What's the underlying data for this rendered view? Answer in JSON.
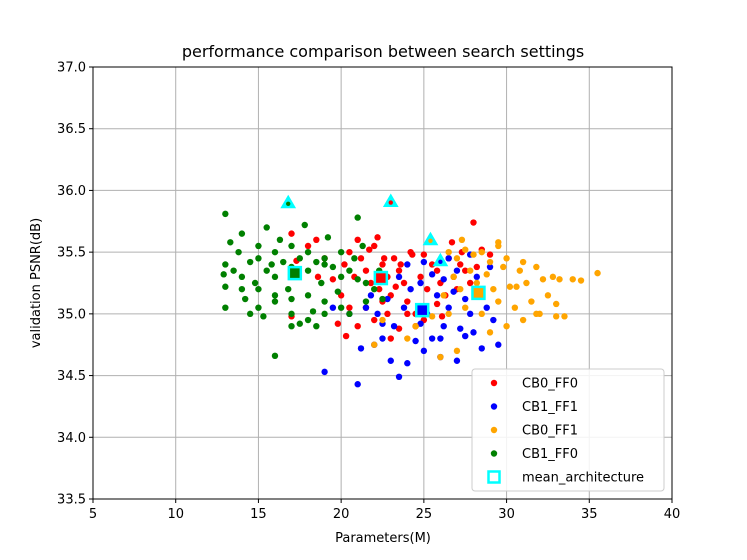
{
  "chart_data": {
    "type": "scatter",
    "title": "performance comparison between search settings",
    "xlabel": "Parameters(M)",
    "ylabel": "validation PSNR(dB)",
    "xlim": [
      5,
      40
    ],
    "ylim": [
      33.5,
      37.0
    ],
    "xticks": [
      "5",
      "10",
      "15",
      "20",
      "25",
      "30",
      "35",
      "40"
    ],
    "yticks": [
      "33.5",
      "34.0",
      "34.5",
      "35.0",
      "35.5",
      "36.0",
      "36.5",
      "37.0"
    ],
    "grid": true,
    "legend_position": "lower-right",
    "colors": {
      "CB0_FF0": "#ff0000",
      "CB1_FF1": "#0000ff",
      "CB0_FF1": "#ffa500",
      "CB1_FF0": "#008000",
      "mean": "#00ffff"
    },
    "series": [
      {
        "name": "CB0_FF0",
        "points": [
          [
            17.3,
            35.43
          ],
          [
            18.5,
            35.6
          ],
          [
            17.0,
            35.65
          ],
          [
            18.0,
            35.55
          ],
          [
            19.0,
            35.45
          ],
          [
            19.5,
            35.28
          ],
          [
            20.0,
            35.15
          ],
          [
            20.2,
            35.4
          ],
          [
            20.5,
            35.5
          ],
          [
            20.8,
            35.3
          ],
          [
            21.0,
            35.6
          ],
          [
            21.2,
            35.45
          ],
          [
            21.5,
            35.35
          ],
          [
            21.8,
            35.25
          ],
          [
            22.0,
            35.55
          ],
          [
            22.3,
            35.2
          ],
          [
            22.5,
            35.4
          ],
          [
            22.8,
            35.3
          ],
          [
            23.0,
            35.15
          ],
          [
            23.2,
            35.45
          ],
          [
            23.5,
            35.35
          ],
          [
            23.8,
            35.25
          ],
          [
            24.0,
            35.1
          ],
          [
            24.2,
            35.5
          ],
          [
            24.5,
            35.0
          ],
          [
            24.8,
            35.3
          ],
          [
            25.0,
            34.95
          ],
          [
            25.2,
            35.2
          ],
          [
            25.5,
            35.4
          ],
          [
            25.8,
            35.35
          ],
          [
            26.0,
            35.25
          ],
          [
            26.3,
            35.15
          ],
          [
            26.5,
            35.45
          ],
          [
            26.8,
            35.3
          ],
          [
            27.0,
            35.2
          ],
          [
            27.3,
            35.5
          ],
          [
            27.5,
            35.35
          ],
          [
            27.8,
            35.25
          ],
          [
            28.0,
            35.74
          ],
          [
            28.5,
            35.52
          ],
          [
            29.0,
            35.48
          ],
          [
            28.2,
            35.38
          ],
          [
            21.0,
            34.9
          ],
          [
            21.5,
            35.05
          ],
          [
            22.0,
            34.95
          ],
          [
            22.5,
            35.1
          ],
          [
            23.0,
            34.8
          ],
          [
            23.5,
            34.88
          ],
          [
            24.0,
            35.0
          ],
          [
            24.5,
            34.9
          ],
          [
            20.5,
            35.05
          ],
          [
            22.8,
            35.0
          ],
          [
            23.3,
            35.22
          ],
          [
            21.7,
            35.52
          ],
          [
            22.2,
            35.62
          ],
          [
            22.6,
            35.45
          ],
          [
            23.6,
            35.4
          ],
          [
            24.3,
            35.48
          ],
          [
            25.0,
            35.48
          ],
          [
            26.7,
            35.58
          ],
          [
            27.2,
            35.4
          ],
          [
            17.0,
            34.98
          ],
          [
            19.8,
            34.92
          ],
          [
            20.3,
            34.82
          ],
          [
            18.6,
            35.3
          ],
          [
            25.8,
            35.08
          ],
          [
            26.1,
            34.98
          ]
        ]
      },
      {
        "name": "CB1_FF1",
        "points": [
          [
            19.0,
            34.53
          ],
          [
            21.0,
            34.43
          ],
          [
            23.5,
            34.49
          ],
          [
            23.0,
            34.62
          ],
          [
            24.0,
            34.6
          ],
          [
            25.0,
            34.7
          ],
          [
            26.0,
            34.65
          ],
          [
            27.0,
            34.62
          ],
          [
            28.5,
            34.72
          ],
          [
            29.5,
            34.75
          ],
          [
            22.0,
            34.75
          ],
          [
            22.5,
            34.8
          ],
          [
            24.5,
            34.78
          ],
          [
            25.5,
            34.8
          ],
          [
            27.5,
            34.82
          ],
          [
            28.0,
            34.85
          ],
          [
            23.2,
            34.9
          ],
          [
            24.8,
            34.92
          ],
          [
            26.2,
            34.9
          ],
          [
            27.2,
            34.88
          ],
          [
            29.2,
            34.95
          ],
          [
            20.5,
            35.0
          ],
          [
            21.5,
            35.05
          ],
          [
            22.2,
            35.0
          ],
          [
            23.8,
            35.05
          ],
          [
            25.2,
            35.0
          ],
          [
            26.5,
            35.05
          ],
          [
            27.8,
            35.0
          ],
          [
            28.8,
            35.05
          ],
          [
            21.8,
            35.15
          ],
          [
            22.8,
            35.12
          ],
          [
            24.2,
            35.2
          ],
          [
            25.8,
            35.15
          ],
          [
            26.8,
            35.18
          ],
          [
            27.5,
            35.12
          ],
          [
            28.2,
            35.2
          ],
          [
            23.5,
            35.3
          ],
          [
            24.8,
            35.25
          ],
          [
            25.5,
            35.32
          ],
          [
            26.2,
            35.28
          ],
          [
            27.0,
            35.35
          ],
          [
            28.2,
            35.3
          ],
          [
            29.0,
            35.38
          ],
          [
            24.0,
            35.4
          ],
          [
            25.0,
            35.42
          ],
          [
            26.5,
            35.45
          ],
          [
            27.8,
            35.48
          ],
          [
            26.0,
            34.8
          ],
          [
            22.5,
            34.92
          ],
          [
            19.5,
            35.05
          ],
          [
            21.2,
            34.72
          ]
        ]
      },
      {
        "name": "CB0_FF1",
        "points": [
          [
            22.0,
            34.75
          ],
          [
            24.0,
            34.8
          ],
          [
            26.0,
            34.65
          ],
          [
            27.0,
            34.7
          ],
          [
            29.0,
            34.85
          ],
          [
            30.0,
            34.9
          ],
          [
            31.0,
            34.95
          ],
          [
            32.0,
            35.0
          ],
          [
            33.0,
            34.98
          ],
          [
            33.5,
            34.98
          ],
          [
            26.5,
            35.0
          ],
          [
            27.5,
            35.05
          ],
          [
            28.5,
            35.0
          ],
          [
            29.5,
            35.1
          ],
          [
            30.5,
            35.05
          ],
          [
            31.5,
            35.1
          ],
          [
            32.5,
            35.15
          ],
          [
            26.2,
            35.15
          ],
          [
            27.2,
            35.2
          ],
          [
            28.2,
            35.25
          ],
          [
            29.2,
            35.2
          ],
          [
            30.2,
            35.22
          ],
          [
            31.2,
            35.25
          ],
          [
            32.2,
            35.28
          ],
          [
            33.2,
            35.28
          ],
          [
            34.0,
            35.28
          ],
          [
            34.5,
            35.27
          ],
          [
            35.5,
            35.33
          ],
          [
            26.8,
            35.3
          ],
          [
            27.8,
            35.35
          ],
          [
            28.8,
            35.32
          ],
          [
            29.8,
            35.38
          ],
          [
            30.8,
            35.35
          ],
          [
            31.8,
            35.38
          ],
          [
            32.8,
            35.3
          ],
          [
            27.0,
            35.45
          ],
          [
            28.0,
            35.48
          ],
          [
            29.0,
            35.42
          ],
          [
            30.0,
            35.45
          ],
          [
            31.0,
            35.42
          ],
          [
            26.5,
            35.5
          ],
          [
            27.5,
            35.52
          ],
          [
            28.5,
            35.5
          ],
          [
            29.5,
            35.55
          ],
          [
            25.5,
            34.98
          ],
          [
            24.5,
            34.9
          ],
          [
            22.5,
            34.95
          ],
          [
            33.0,
            35.08
          ],
          [
            31.8,
            35.0
          ],
          [
            30.6,
            35.22
          ],
          [
            29.5,
            35.58
          ],
          [
            27.3,
            35.6
          ]
        ]
      },
      {
        "name": "CB1_FF0",
        "points": [
          [
            13.0,
            35.81
          ],
          [
            14.0,
            35.65
          ],
          [
            15.0,
            35.55
          ],
          [
            16.0,
            35.5
          ],
          [
            17.0,
            35.55
          ],
          [
            18.0,
            35.5
          ],
          [
            19.0,
            35.45
          ],
          [
            20.0,
            35.5
          ],
          [
            21.0,
            35.78
          ],
          [
            13.0,
            35.4
          ],
          [
            13.5,
            35.35
          ],
          [
            14.0,
            35.3
          ],
          [
            14.5,
            35.42
          ],
          [
            15.0,
            35.45
          ],
          [
            15.5,
            35.35
          ],
          [
            16.0,
            35.3
          ],
          [
            16.5,
            35.42
          ],
          [
            17.0,
            35.38
          ],
          [
            17.5,
            35.45
          ],
          [
            18.0,
            35.35
          ],
          [
            18.5,
            35.42
          ],
          [
            19.0,
            35.4
          ],
          [
            19.5,
            35.38
          ],
          [
            20.0,
            35.3
          ],
          [
            20.5,
            35.35
          ],
          [
            21.0,
            35.28
          ],
          [
            21.5,
            35.25
          ],
          [
            22.0,
            35.2
          ],
          [
            13.0,
            35.22
          ],
          [
            14.0,
            35.2
          ],
          [
            15.0,
            35.2
          ],
          [
            16.0,
            35.15
          ],
          [
            17.0,
            35.12
          ],
          [
            18.0,
            35.15
          ],
          [
            19.0,
            35.1
          ],
          [
            20.0,
            35.05
          ],
          [
            15.0,
            35.05
          ],
          [
            16.0,
            35.1
          ],
          [
            17.0,
            35.0
          ],
          [
            18.0,
            34.95
          ],
          [
            19.0,
            35.0
          ],
          [
            13.0,
            35.05
          ],
          [
            14.5,
            35.0
          ],
          [
            17.0,
            34.9
          ],
          [
            17.5,
            34.92
          ],
          [
            18.5,
            34.9
          ],
          [
            20.5,
            35.0
          ],
          [
            21.5,
            35.1
          ],
          [
            22.5,
            35.12
          ],
          [
            16.0,
            34.66
          ],
          [
            15.5,
            35.7
          ],
          [
            17.8,
            35.72
          ],
          [
            19.2,
            35.62
          ],
          [
            22.3,
            35.35
          ],
          [
            13.8,
            35.5
          ],
          [
            14.8,
            35.25
          ],
          [
            15.8,
            35.4
          ],
          [
            16.8,
            35.2
          ],
          [
            18.8,
            35.25
          ],
          [
            19.8,
            35.18
          ],
          [
            20.8,
            35.45
          ],
          [
            21.3,
            35.55
          ],
          [
            13.3,
            35.58
          ],
          [
            16.3,
            35.6
          ],
          [
            12.9,
            35.32
          ],
          [
            14.2,
            35.12
          ],
          [
            18.3,
            35.02
          ],
          [
            15.3,
            34.98
          ]
        ]
      },
      {
        "name": "mean_architecture",
        "squares": [
          [
            17.2,
            35.33
          ],
          [
            22.4,
            35.29
          ],
          [
            28.3,
            35.17
          ],
          [
            24.9,
            35.03
          ]
        ],
        "triangles": [
          [
            16.8,
            35.9
          ],
          [
            23.0,
            35.91
          ],
          [
            25.4,
            35.6
          ],
          [
            26.0,
            35.43
          ]
        ]
      }
    ],
    "legend": [
      "CB0_FF0",
      "CB1_FF1",
      "CB0_FF1",
      "CB1_FF0",
      "mean_architecture"
    ]
  }
}
